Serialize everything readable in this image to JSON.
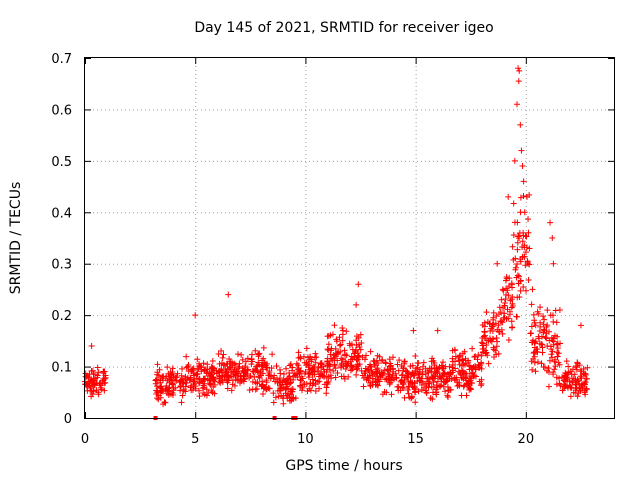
{
  "chart_data": {
    "type": "scatter",
    "title": "Day 145 of 2021, SRMTID for receiver igeo",
    "xlabel": "GPS time / hours",
    "ylabel": "SRMTID / TECUs",
    "xlim": [
      0,
      24
    ],
    "ylim": [
      0,
      0.7
    ],
    "xticks": [
      0,
      5,
      10,
      15,
      20
    ],
    "xtick_labels": [
      "0",
      "5",
      "10",
      "15",
      "20"
    ],
    "yticks": [
      0,
      0.1,
      0.2,
      0.3,
      0.4,
      0.5,
      0.6,
      0.7
    ],
    "ytick_labels": [
      "0",
      "0.1",
      "0.2",
      "0.3",
      "0.4",
      "0.5",
      "0.6",
      "0.7"
    ],
    "grid": true,
    "marker": "+",
    "color": "#ff0000",
    "segments": [
      {
        "x_start": 0.0,
        "x_end": 0.95,
        "median": 0.07,
        "spread": 0.025
      },
      {
        "x_start": 3.2,
        "x_end": 4.5,
        "median": 0.065,
        "spread": 0.025
      },
      {
        "x_start": 4.5,
        "x_end": 6.0,
        "median": 0.08,
        "spread": 0.03
      },
      {
        "x_start": 6.0,
        "x_end": 7.5,
        "median": 0.09,
        "spread": 0.03
      },
      {
        "x_start": 7.5,
        "x_end": 8.5,
        "median": 0.085,
        "spread": 0.035
      },
      {
        "x_start": 8.5,
        "x_end": 9.6,
        "median": 0.06,
        "spread": 0.03
      },
      {
        "x_start": 9.6,
        "x_end": 11.0,
        "median": 0.09,
        "spread": 0.035
      },
      {
        "x_start": 11.0,
        "x_end": 12.6,
        "median": 0.12,
        "spread": 0.04
      },
      {
        "x_start": 12.6,
        "x_end": 14.0,
        "median": 0.085,
        "spread": 0.03
      },
      {
        "x_start": 14.0,
        "x_end": 16.5,
        "median": 0.075,
        "spread": 0.03
      },
      {
        "x_start": 16.5,
        "x_end": 18.0,
        "median": 0.09,
        "spread": 0.035
      },
      {
        "x_start": 18.0,
        "x_end": 18.8,
        "median": 0.16,
        "spread": 0.05
      },
      {
        "x_start": 18.8,
        "x_end": 19.4,
        "median": 0.22,
        "spread": 0.05
      },
      {
        "x_start": 19.4,
        "x_end": 20.2,
        "median": 0.3,
        "spread": 0.1
      },
      {
        "x_start": 20.2,
        "x_end": 21.0,
        "median": 0.15,
        "spread": 0.05
      },
      {
        "x_start": 21.0,
        "x_end": 21.6,
        "median": 0.12,
        "spread": 0.06
      },
      {
        "x_start": 21.6,
        "x_end": 22.8,
        "median": 0.07,
        "spread": 0.03
      }
    ],
    "peaks": [
      {
        "x": 5.0,
        "y": 0.2
      },
      {
        "x": 6.5,
        "y": 0.24
      },
      {
        "x": 12.4,
        "y": 0.26
      },
      {
        "x": 12.3,
        "y": 0.22
      },
      {
        "x": 11.7,
        "y": 0.17
      },
      {
        "x": 14.9,
        "y": 0.17
      },
      {
        "x": 16.0,
        "y": 0.17
      },
      {
        "x": 18.7,
        "y": 0.3
      },
      {
        "x": 19.2,
        "y": 0.43
      },
      {
        "x": 19.5,
        "y": 0.5
      },
      {
        "x": 19.6,
        "y": 0.61
      },
      {
        "x": 19.65,
        "y": 0.68
      },
      {
        "x": 19.7,
        "y": 0.675
      },
      {
        "x": 19.68,
        "y": 0.655
      },
      {
        "x": 19.75,
        "y": 0.57
      },
      {
        "x": 19.8,
        "y": 0.52
      },
      {
        "x": 19.85,
        "y": 0.49
      },
      {
        "x": 19.9,
        "y": 0.46
      },
      {
        "x": 19.95,
        "y": 0.4
      },
      {
        "x": 20.1,
        "y": 0.3
      },
      {
        "x": 20.3,
        "y": 0.25
      },
      {
        "x": 21.1,
        "y": 0.38
      },
      {
        "x": 21.2,
        "y": 0.35
      },
      {
        "x": 21.25,
        "y": 0.3
      },
      {
        "x": 22.5,
        "y": 0.18
      },
      {
        "x": 0.3,
        "y": 0.14
      }
    ],
    "zero_points": [
      3.2,
      8.6,
      9.45,
      9.5,
      9.55
    ]
  }
}
